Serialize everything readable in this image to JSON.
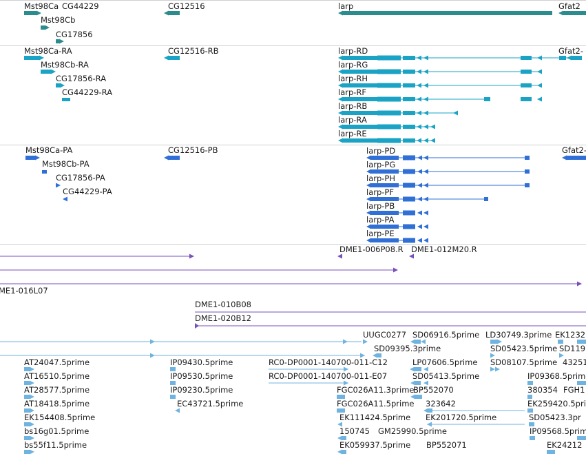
{
  "colors": {
    "gene": "#2a8c8c",
    "transcript": "#1aa3c4",
    "protein": "#2f6fd6",
    "clone": "#7850bb",
    "est": "#6fb3e0",
    "divider": "#cfcfcf"
  },
  "tracks": [
    {
      "name": "genes",
      "color": "gene",
      "features": [
        {
          "label": "Mst98Ca",
          "bar": {
            "label": "Mst98Ca",
            "type": "forward-small"
          }
        },
        {
          "label": "CG44229"
        },
        {
          "label": "Mst98Cb"
        },
        {
          "label": "CG17856"
        },
        {
          "label": "CG12516"
        },
        {
          "label": "larp"
        },
        {
          "label": "Gfat2"
        }
      ]
    },
    {
      "name": "transcripts",
      "color": "transcript",
      "features": [
        {
          "label": "Mst98Ca-RA"
        },
        {
          "label": "Mst98Cb-RA"
        },
        {
          "label": "CG17856-RA"
        },
        {
          "label": "CG44229-RA"
        },
        {
          "label": "CG12516-RB"
        },
        {
          "label": "larp-RD"
        },
        {
          "label": "larp-RG"
        },
        {
          "label": "larp-RH"
        },
        {
          "label": "larp-RF"
        },
        {
          "label": "larp-RB"
        },
        {
          "label": "larp-RA"
        },
        {
          "label": "larp-RE"
        },
        {
          "label": "Gfat2-"
        }
      ]
    },
    {
      "name": "proteins",
      "color": "protein",
      "features": [
        {
          "label": "Mst98Ca-PA"
        },
        {
          "label": "Mst98Cb-PA"
        },
        {
          "label": "CG17856-PA"
        },
        {
          "label": "CG44229-PA"
        },
        {
          "label": "CG12516-PB"
        },
        {
          "label": "larp-PD"
        },
        {
          "label": "larp-PG"
        },
        {
          "label": "larp-PH"
        },
        {
          "label": "larp-PF"
        },
        {
          "label": "larp-PB"
        },
        {
          "label": "larp-PA"
        },
        {
          "label": "larp-PE"
        },
        {
          "label": "Gfat2-"
        }
      ]
    },
    {
      "name": "clones",
      "color": "clone",
      "features": [
        {
          "label": "DME1-006P08.R"
        },
        {
          "label": "DME1-012M20.R"
        },
        {
          "label": "ME1-016L07"
        },
        {
          "label": "DME1-010B08"
        },
        {
          "label": "DME1-020B12"
        }
      ]
    },
    {
      "name": "ests",
      "color": "est",
      "features": [
        {
          "label": "UUGC0277"
        },
        {
          "label": "SD06916.5prime"
        },
        {
          "label": "LD30749.3prime"
        },
        {
          "label": "EK1232"
        },
        {
          "label": "SD09395.3prime"
        },
        {
          "label": "SD05423.5prime"
        },
        {
          "label": "SD119"
        },
        {
          "label": "AT24047.5prime"
        },
        {
          "label": "IP09430.5prime"
        },
        {
          "label": "RC0-DP0001-140700-011-C12"
        },
        {
          "label": "LP07606.5prime"
        },
        {
          "label": "SD08107.5prime"
        },
        {
          "label": "43251"
        },
        {
          "label": "AT16510.5prime"
        },
        {
          "label": "IP09530.5prime"
        },
        {
          "label": "RC0-DP0001-140700-011-E07"
        },
        {
          "label": "SD05413.5prime"
        },
        {
          "label": "IP09368.5prime"
        },
        {
          "label": "AT28577.5prime"
        },
        {
          "label": "IP09230.5prime"
        },
        {
          "label": "FGC026A11.3prime"
        },
        {
          "label": "BP552070"
        },
        {
          "label": "380354"
        },
        {
          "label": "FGH1"
        },
        {
          "label": "AT18418.5prime"
        },
        {
          "label": "EC43721.5prime"
        },
        {
          "label": "FGC026A11.5prime"
        },
        {
          "label": "323642"
        },
        {
          "label": "EK259420.5pri"
        },
        {
          "label": "EK154408.5prime"
        },
        {
          "label": "EK111424.5prime"
        },
        {
          "label": "EK201720.5prime"
        },
        {
          "label": "SD05423.3pr"
        },
        {
          "label": "bs16g01.5prime"
        },
        {
          "label": "150745"
        },
        {
          "label": "GM25990.5prime"
        },
        {
          "label": "IP09568.5prime"
        },
        {
          "label": "bs55f11.5prime"
        },
        {
          "label": "EK059937.5prime"
        },
        {
          "label": "BP552071"
        },
        {
          "label": "EK24212"
        }
      ]
    }
  ]
}
